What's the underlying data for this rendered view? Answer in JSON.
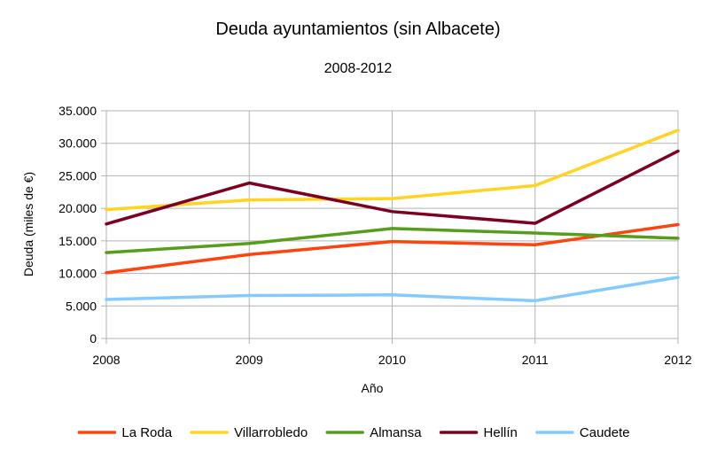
{
  "chart_data": {
    "type": "line",
    "title": "Deuda ayuntamientos (sin Albacete)",
    "subtitle": "2008-2012",
    "xlabel": "Año",
    "ylabel": "Deuda (miles de €)",
    "categories": [
      "2008",
      "2009",
      "2010",
      "2011",
      "2012"
    ],
    "ylim": [
      0,
      35000
    ],
    "ytick_values": [
      0,
      5000,
      10000,
      15000,
      20000,
      25000,
      30000,
      35000
    ],
    "ytick_labels": [
      "0",
      "5.000",
      "10.000",
      "15.000",
      "20.000",
      "25.000",
      "30.000",
      "35.000"
    ],
    "grid": "horizontal",
    "legend_position": "bottom",
    "series": [
      {
        "name": "La Roda",
        "color": "#ff420e",
        "values": [
          10100,
          12900,
          14900,
          14400,
          17500
        ]
      },
      {
        "name": "Villarrobledo",
        "color": "#ffd320",
        "values": [
          19800,
          21300,
          21500,
          23500,
          32000
        ]
      },
      {
        "name": "Almansa",
        "color": "#579d1c",
        "values": [
          13200,
          14600,
          16900,
          16200,
          15400
        ]
      },
      {
        "name": "Hellín",
        "color": "#7e0021",
        "values": [
          17600,
          23900,
          19500,
          17700,
          28800
        ]
      },
      {
        "name": "Caudete",
        "color": "#83caff",
        "values": [
          6000,
          6600,
          6700,
          5800,
          9400
        ]
      }
    ]
  }
}
